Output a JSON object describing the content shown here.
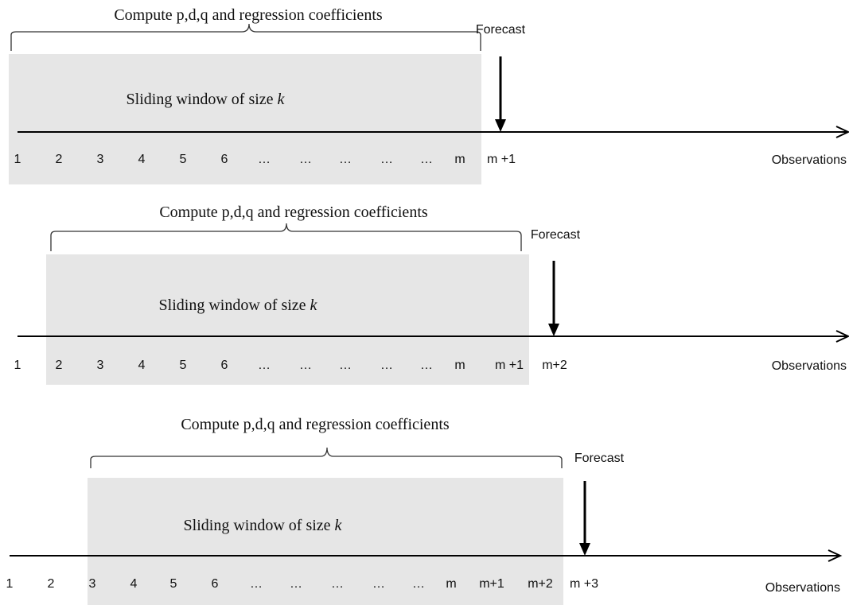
{
  "panels": [
    {
      "compute_label": "Compute p,d,q and regression coefficients",
      "window_prefix": "Sliding window of size ",
      "window_var": "k",
      "forecast_label": "Forecast",
      "axis_label": "Observations",
      "ticks": [
        "1",
        "2",
        "3",
        "4",
        "5",
        "6",
        "…",
        "…",
        "…",
        "…",
        "…",
        "m",
        "m +1"
      ]
    },
    {
      "compute_label": "Compute p,d,q and regression coefficients",
      "window_prefix": "Sliding window of size ",
      "window_var": "k",
      "forecast_label": "Forecast",
      "axis_label": "Observations",
      "ticks": [
        "1",
        "2",
        "3",
        "4",
        "5",
        "6",
        "…",
        "…",
        "…",
        "…",
        "…",
        "m",
        "m +1",
        "m+2"
      ]
    },
    {
      "compute_label": "Compute p,d,q and regression coefficients",
      "window_prefix": "Sliding window of size ",
      "window_var": "k",
      "forecast_label": "Forecast",
      "axis_label": "Observations",
      "ticks": [
        "1",
        "2",
        "3",
        "4",
        "5",
        "6",
        "…",
        "…",
        "…",
        "…",
        "…",
        "m",
        "m+1",
        "m+2",
        "m +3"
      ]
    }
  ]
}
